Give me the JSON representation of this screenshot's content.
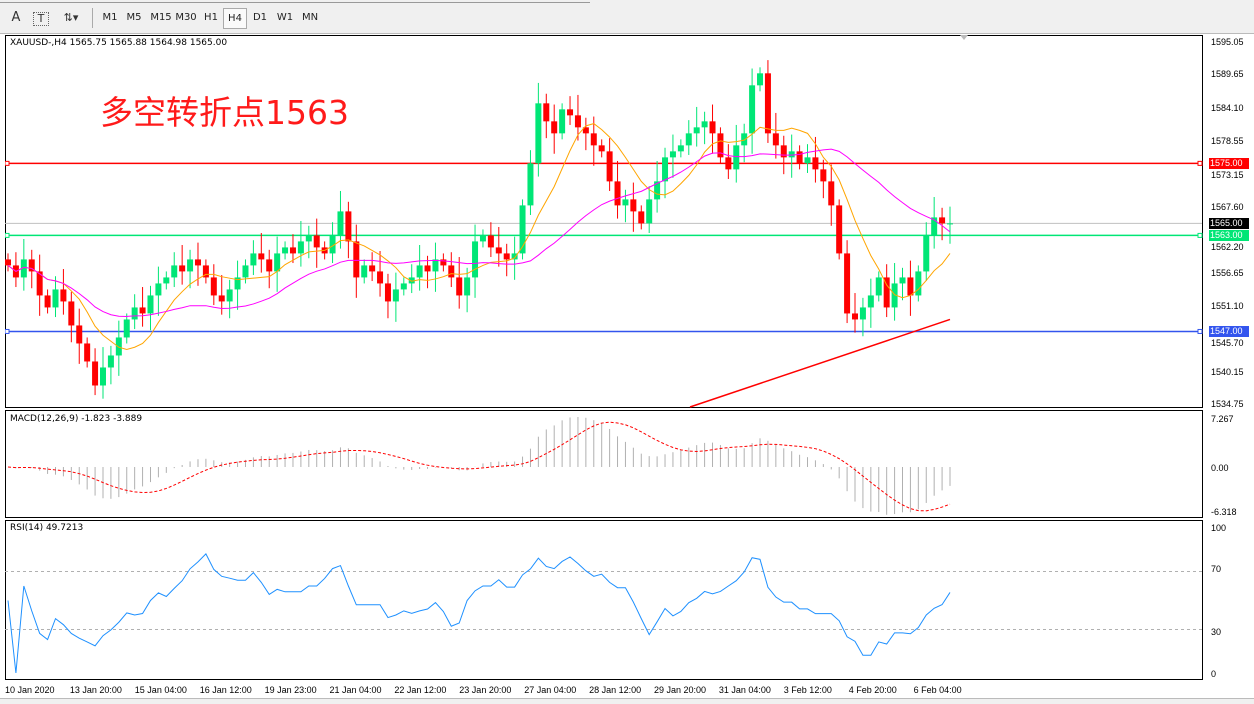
{
  "toolbar": {
    "icons": [
      "text-icon",
      "text-label-icon",
      "arrows-icon"
    ],
    "text_btn": "A",
    "label_btn": "T",
    "timeframes": [
      "M1",
      "M5",
      "M15",
      "M30",
      "H1",
      "H4",
      "D1",
      "W1",
      "MN"
    ],
    "active": "H4"
  },
  "symbol_info": "XAUUSD-,H4  1565.75 1565.88 1564.98 1565.00",
  "annotation": "多空转折点1563",
  "price_axis": [
    "1595.05",
    "1589.65",
    "1584.10",
    "1578.55",
    "1573.15",
    "1567.60",
    "1562.20",
    "1556.65",
    "1551.10",
    "1545.70",
    "1540.15",
    "1534.75"
  ],
  "levels": [
    {
      "label": "1575.00",
      "value": 1575,
      "color": "#ff0000"
    },
    {
      "label": "1565.00",
      "value": 1565,
      "color": "#000000"
    },
    {
      "label": "1563.00",
      "value": 1563,
      "color": "#00e676"
    },
    {
      "label": "1547.00",
      "value": 1547,
      "color": "#3355ee"
    }
  ],
  "macd": {
    "label": "MACD(12,26,9) -1.823 -3.889",
    "axis": [
      "7.267",
      "0.00",
      "-6.318"
    ]
  },
  "rsi": {
    "label": "RSI(14) 49.7213",
    "axis": [
      "100",
      "70",
      "30",
      "0"
    ]
  },
  "dates": [
    "10 Jan 2020",
    "13 Jan 20:00",
    "15 Jan 04:00",
    "16 Jan 12:00",
    "19 Jan 23:00",
    "21 Jan 04:00",
    "22 Jan 12:00",
    "23 Jan 20:00",
    "27 Jan 04:00",
    "28 Jan 12:00",
    "29 Jan 20:00",
    "31 Jan 04:00",
    "3 Feb 12:00",
    "4 Feb 20:00",
    "6 Feb 04:00"
  ],
  "chart_data": {
    "type": "candlestick",
    "symbol": "XAUUSD-",
    "timeframe": "H4",
    "ylim": [
      1534.75,
      1595.05
    ],
    "colors": {
      "up": "#00e676",
      "down": "#ff0000",
      "ma_fast": "#ffa500",
      "ma_slow": "#ff00ff",
      "ma_long": "#ff0000"
    },
    "closes": [
      1558,
      1556,
      1559,
      1557,
      1553,
      1551,
      1554,
      1552,
      1548,
      1545,
      1542,
      1538,
      1541,
      1543,
      1546,
      1549,
      1551,
      1550,
      1553,
      1555,
      1556,
      1558,
      1557,
      1559,
      1558,
      1556,
      1553,
      1552,
      1554,
      1556,
      1558,
      1560,
      1559,
      1557,
      1560,
      1561,
      1560,
      1562,
      1563,
      1561,
      1560,
      1563,
      1567,
      1562,
      1556,
      1558,
      1557,
      1555,
      1552,
      1554,
      1555,
      1556,
      1558,
      1557,
      1559,
      1558,
      1556,
      1553,
      1556,
      1562,
      1563,
      1561,
      1560,
      1559,
      1560,
      1568,
      1575,
      1585,
      1582,
      1580,
      1584,
      1583,
      1581,
      1580,
      1578,
      1577,
      1572,
      1568,
      1569,
      1567,
      1565,
      1569,
      1572,
      1576,
      1577,
      1578,
      1580,
      1581,
      1582,
      1580,
      1576,
      1574,
      1578,
      1580,
      1588,
      1590,
      1580,
      1578,
      1576,
      1577,
      1575,
      1576,
      1574,
      1572,
      1568,
      1560,
      1550,
      1549,
      1551,
      1553,
      1556,
      1551,
      1555,
      1556,
      1553,
      1557,
      1563,
      1566,
      1565,
      1565
    ]
  }
}
